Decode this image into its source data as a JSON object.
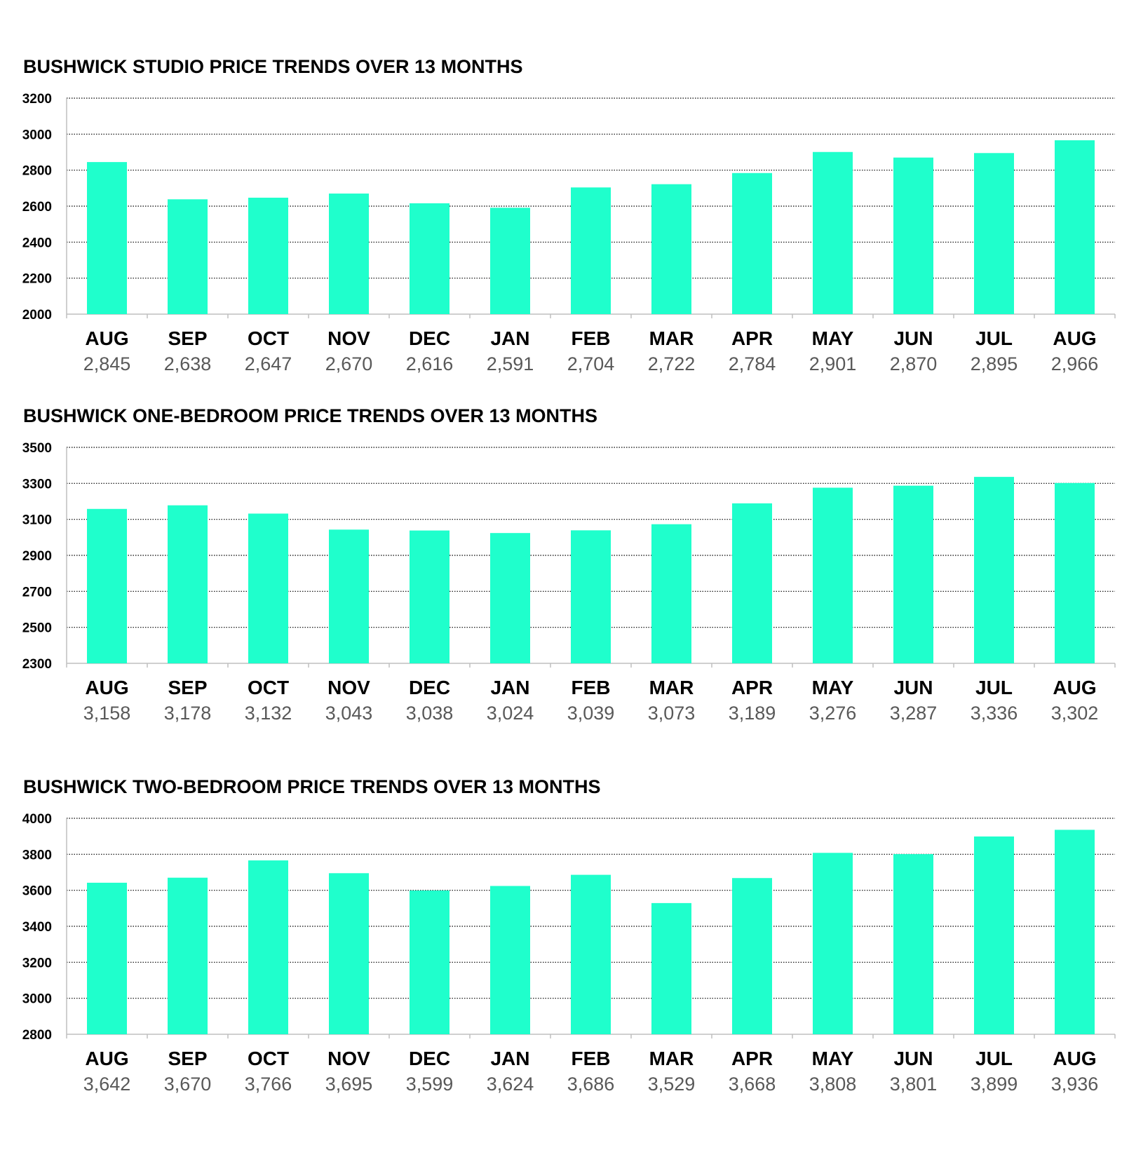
{
  "colors": {
    "bar": "#1fffcc",
    "grid": "#000000",
    "axis": "#bfbfbf",
    "value_text": "#595959"
  },
  "chart_data": [
    {
      "type": "bar",
      "title": "BUSHWICK STUDIO PRICE TRENDS OVER 13 MONTHS",
      "categories": [
        "AUG",
        "SEP",
        "OCT",
        "NOV",
        "DEC",
        "JAN",
        "FEB",
        "MAR",
        "APR",
        "MAY",
        "JUN",
        "JUL",
        "AUG"
      ],
      "values": [
        2845,
        2638,
        2647,
        2670,
        2616,
        2591,
        2704,
        2722,
        2784,
        2901,
        2870,
        2895,
        2966
      ],
      "value_labels": [
        "2,845",
        "2,638",
        "2,647",
        "2,670",
        "2,616",
        "2,591",
        "2,704",
        "2,722",
        "2,784",
        "2,901",
        "2,870",
        "2,895",
        "2,966"
      ],
      "ylim": [
        2000,
        3200
      ],
      "yticks": [
        "2000",
        "2200",
        "2400",
        "2600",
        "2800",
        "3000",
        "3200"
      ],
      "grid": true,
      "grid_style": "dotted",
      "legend": "none"
    },
    {
      "type": "bar",
      "title": "BUSHWICK ONE-BEDROOM PRICE TRENDS OVER 13 MONTHS",
      "categories": [
        "AUG",
        "SEP",
        "OCT",
        "NOV",
        "DEC",
        "JAN",
        "FEB",
        "MAR",
        "APR",
        "MAY",
        "JUN",
        "JUL",
        "AUG"
      ],
      "values": [
        3158,
        3178,
        3132,
        3043,
        3038,
        3024,
        3039,
        3073,
        3189,
        3276,
        3287,
        3336,
        3302
      ],
      "value_labels": [
        "3,158",
        "3,178",
        "3,132",
        "3,043",
        "3,038",
        "3,024",
        "3,039",
        "3,073",
        "3,189",
        "3,276",
        "3,287",
        "3,336",
        "3,302"
      ],
      "ylim": [
        2300,
        3500
      ],
      "yticks": [
        "2300",
        "2500",
        "2700",
        "2900",
        "3100",
        "3300",
        "3500"
      ],
      "grid": true,
      "grid_style": "dotted",
      "legend": "none"
    },
    {
      "type": "bar",
      "title": "BUSHWICK TWO-BEDROOM PRICE TRENDS OVER 13 MONTHS",
      "categories": [
        "AUG",
        "SEP",
        "OCT",
        "NOV",
        "DEC",
        "JAN",
        "FEB",
        "MAR",
        "APR",
        "MAY",
        "JUN",
        "JUL",
        "AUG"
      ],
      "values": [
        3642,
        3670,
        3766,
        3695,
        3599,
        3624,
        3686,
        3529,
        3668,
        3808,
        3801,
        3899,
        3936
      ],
      "value_labels": [
        "3,642",
        "3,670",
        "3,766",
        "3,695",
        "3,599",
        "3,624",
        "3,686",
        "3,529",
        "3,668",
        "3,808",
        "3,801",
        "3,899",
        "3,936"
      ],
      "ylim": [
        2800,
        4000
      ],
      "yticks": [
        "2800",
        "3000",
        "3200",
        "3400",
        "3600",
        "3800",
        "4000"
      ],
      "grid": true,
      "grid_style": "dotted",
      "legend": "none"
    }
  ]
}
